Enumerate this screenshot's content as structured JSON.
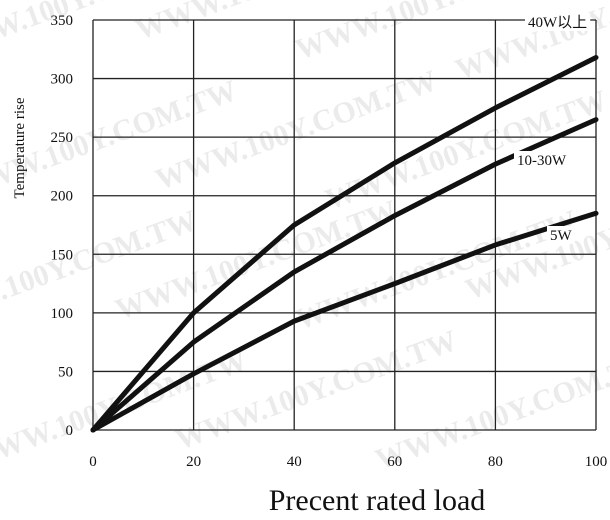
{
  "chart_data": {
    "type": "line",
    "xlabel": "Precent rated load",
    "ylabel": "Temperature rise",
    "xlim": [
      0,
      100
    ],
    "ylim": [
      0,
      350
    ],
    "xticks": [
      "0",
      "20",
      "40",
      "60",
      "80",
      "100"
    ],
    "yticks": [
      "0",
      "50",
      "100",
      "150",
      "200",
      "250",
      "300",
      "350"
    ],
    "grid": true,
    "series": [
      {
        "name": "40W以上",
        "x": [
          0,
          20,
          40,
          60,
          80,
          100
        ],
        "y": [
          0,
          100,
          175,
          228,
          275,
          318
        ]
      },
      {
        "name": "10-30W",
        "x": [
          0,
          20,
          40,
          60,
          80,
          100
        ],
        "y": [
          0,
          75,
          135,
          183,
          227,
          265
        ]
      },
      {
        "name": "5W",
        "x": [
          0,
          20,
          40,
          60,
          80,
          100
        ],
        "y": [
          0,
          48,
          93,
          125,
          158,
          185
        ]
      }
    ]
  },
  "watermark": "WWW.100Y.COM.TW"
}
